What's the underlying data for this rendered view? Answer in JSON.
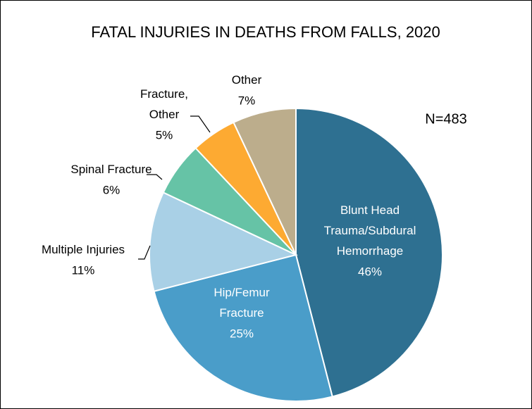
{
  "chart_data": {
    "type": "pie",
    "title": "FATAL INJURIES IN DEATHS FROM FALLS, 2020",
    "annotation": "N=483",
    "categories": [
      "Blunt Head Trauma/Subdural Hemorrhage",
      "Hip/Femur Fracture",
      "Multiple Injuries",
      "Spinal Fracture",
      "Fracture, Other",
      "Other"
    ],
    "values": [
      46,
      25,
      11,
      6,
      5,
      7
    ],
    "value_labels": [
      "46%",
      "25%",
      "11%",
      "6%",
      "5%",
      "7%"
    ],
    "colors": [
      "#2e7091",
      "#4a9dc9",
      "#a9d0e6",
      "#66c3a6",
      "#fdaa32",
      "#bcad8c"
    ]
  }
}
